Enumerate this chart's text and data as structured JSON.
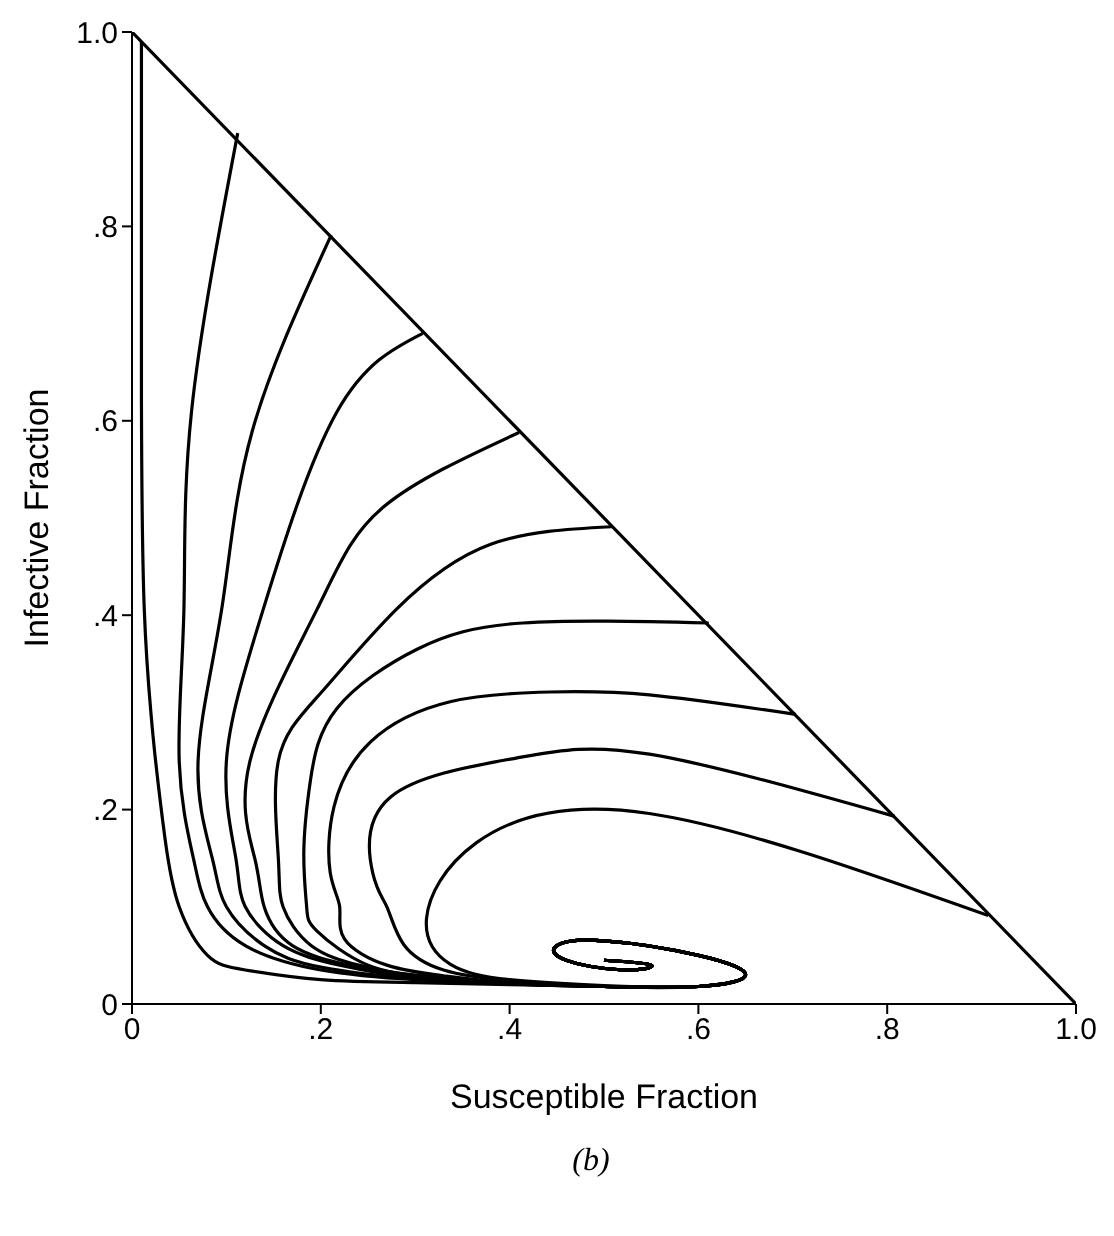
{
  "chart_data": {
    "type": "line",
    "xlabel": "Susceptible Fraction",
    "ylabel": "Infective Fraction",
    "annotations": [
      "(b)"
    ],
    "xlim": [
      0,
      1
    ],
    "ylim": [
      0,
      1
    ],
    "xticks": [
      {
        "value": 0,
        "label": "0"
      },
      {
        "value": 0.2,
        "label": ".2"
      },
      {
        "value": 0.4,
        "label": ".4"
      },
      {
        "value": 0.6,
        "label": ".6"
      },
      {
        "value": 0.8,
        "label": ".8"
      },
      {
        "value": 1,
        "label": "1.0"
      }
    ],
    "yticks": [
      {
        "value": 0,
        "label": "0"
      },
      {
        "value": 0.2,
        "label": ".2"
      },
      {
        "value": 0.4,
        "label": ".4"
      },
      {
        "value": 0.6,
        "label": ".6"
      },
      {
        "value": 0.8,
        "label": ".8"
      },
      {
        "value": 1,
        "label": "1.0"
      }
    ],
    "grid": false,
    "marker": "none",
    "line_style": "solid",
    "series": [
      {
        "color": "#000000",
        "x": [
          0,
          1
        ],
        "values": [
          1,
          0
        ]
      },
      {
        "color": "#000000",
        "x": [
          0.01,
          0.01,
          0.013,
          0.02,
          0.025,
          0.035,
          0.05,
          0.08,
          0.12,
          0.2,
          0.3,
          0.4,
          0.5,
          0.6,
          0.65,
          0.6,
          0.5,
          0.45,
          0.46,
          0.52,
          0.55,
          0.5
        ],
        "values": [
          0.99,
          0.62,
          0.406,
          0.3,
          0.25,
          0.17,
          0.1,
          0.05,
          0.035,
          0.025,
          0.022,
          0.02,
          0.018,
          0.018,
          0.03,
          0.05,
          0.065,
          0.06,
          0.045,
          0.035,
          0.04,
          0.045
        ]
      },
      {
        "color": "#000000",
        "x": [
          0.112,
          0.063,
          0.055,
          0.05,
          0.065,
          0.08,
          0.12,
          0.2,
          0.3,
          0.4,
          0.5,
          0.6,
          0.65,
          0.6,
          0.5,
          0.45,
          0.46,
          0.52,
          0.55,
          0.5
        ],
        "values": [
          0.896,
          0.609,
          0.406,
          0.25,
          0.15,
          0.1,
          0.06,
          0.035,
          0.025,
          0.021,
          0.018,
          0.018,
          0.03,
          0.05,
          0.065,
          0.06,
          0.045,
          0.035,
          0.04,
          0.045
        ]
      },
      {
        "color": "#000000",
        "x": [
          0.211,
          0.127,
          0.095,
          0.07,
          0.085,
          0.1,
          0.14,
          0.2,
          0.3,
          0.4,
          0.5,
          0.6,
          0.65,
          0.6,
          0.5,
          0.45,
          0.46,
          0.52,
          0.55,
          0.5
        ],
        "values": [
          0.791,
          0.588,
          0.406,
          0.25,
          0.15,
          0.1,
          0.06,
          0.038,
          0.026,
          0.021,
          0.018,
          0.018,
          0.03,
          0.05,
          0.065,
          0.06,
          0.045,
          0.035,
          0.04,
          0.045
        ]
      },
      {
        "color": "#000000",
        "x": [
          0.308,
          0.217,
          0.139,
          0.1,
          0.11,
          0.12,
          0.16,
          0.22,
          0.3,
          0.4,
          0.5,
          0.6,
          0.65,
          0.6,
          0.5,
          0.45,
          0.46,
          0.52,
          0.55,
          0.5
        ],
        "values": [
          0.69,
          0.609,
          0.406,
          0.25,
          0.15,
          0.1,
          0.06,
          0.04,
          0.027,
          0.021,
          0.018,
          0.018,
          0.03,
          0.05,
          0.065,
          0.06,
          0.045,
          0.035,
          0.04,
          0.045
        ]
      },
      {
        "color": "#000000",
        "x": [
          0.41,
          0.266,
          0.196,
          0.125,
          0.13,
          0.14,
          0.17,
          0.23,
          0.3,
          0.4,
          0.5,
          0.6,
          0.65,
          0.6,
          0.5,
          0.45,
          0.46,
          0.52,
          0.55,
          0.5
        ],
        "values": [
          0.588,
          0.511,
          0.406,
          0.25,
          0.15,
          0.1,
          0.06,
          0.04,
          0.028,
          0.021,
          0.018,
          0.018,
          0.03,
          0.05,
          0.065,
          0.06,
          0.045,
          0.035,
          0.04,
          0.045
        ]
      },
      {
        "color": "#000000",
        "x": [
          0.508,
          0.38,
          0.28,
          0.2,
          0.155,
          0.155,
          0.16,
          0.19,
          0.24,
          0.3,
          0.4,
          0.5,
          0.6,
          0.65,
          0.6,
          0.5,
          0.45,
          0.46,
          0.52,
          0.55,
          0.5
        ],
        "values": [
          0.491,
          0.473,
          0.406,
          0.32,
          0.25,
          0.15,
          0.1,
          0.06,
          0.04,
          0.029,
          0.021,
          0.018,
          0.018,
          0.03,
          0.05,
          0.065,
          0.06,
          0.045,
          0.035,
          0.04,
          0.045
        ]
      },
      {
        "color": "#000000",
        "x": [
          0.611,
          0.414,
          0.302,
          0.217,
          0.189,
          0.182,
          0.185,
          0.196,
          0.25,
          0.32,
          0.4,
          0.5,
          0.6,
          0.65,
          0.6,
          0.5,
          0.45,
          0.46,
          0.52,
          0.55,
          0.5
        ],
        "values": [
          0.392,
          0.392,
          0.365,
          0.304,
          0.23,
          0.156,
          0.1,
          0.075,
          0.04,
          0.028,
          0.021,
          0.018,
          0.018,
          0.03,
          0.05,
          0.065,
          0.06,
          0.045,
          0.035,
          0.04,
          0.045
        ]
      },
      {
        "color": "#000000",
        "x": [
          0.703,
          0.548,
          0.443,
          0.337,
          0.253,
          0.214,
          0.21,
          0.22,
          0.225,
          0.27,
          0.33,
          0.4,
          0.5,
          0.6,
          0.65,
          0.6,
          0.5,
          0.45,
          0.46,
          0.52,
          0.55,
          0.5
        ],
        "values": [
          0.298,
          0.318,
          0.321,
          0.311,
          0.27,
          0.203,
          0.135,
          0.1,
          0.067,
          0.04,
          0.029,
          0.022,
          0.018,
          0.018,
          0.03,
          0.05,
          0.065,
          0.06,
          0.045,
          0.035,
          0.04,
          0.045
        ]
      },
      {
        "color": "#000000",
        "x": [
          0.808,
          0.548,
          0.407,
          0.274,
          0.255,
          0.27,
          0.288,
          0.33,
          0.4,
          0.5,
          0.6,
          0.65,
          0.6,
          0.5,
          0.45,
          0.46,
          0.52,
          0.55,
          0.5
        ],
        "values": [
          0.193,
          0.257,
          0.253,
          0.213,
          0.135,
          0.1,
          0.061,
          0.035,
          0.024,
          0.018,
          0.018,
          0.03,
          0.05,
          0.065,
          0.06,
          0.045,
          0.035,
          0.04,
          0.045
        ]
      },
      {
        "color": "#000000",
        "x": [
          0.907,
          0.548,
          0.365,
          0.312,
          0.337,
          0.4,
          0.5,
          0.6,
          0.65,
          0.6,
          0.5,
          0.45,
          0.46,
          0.52,
          0.55,
          0.5
        ],
        "values": [
          0.091,
          0.196,
          0.166,
          0.088,
          0.041,
          0.025,
          0.019,
          0.018,
          0.03,
          0.05,
          0.065,
          0.06,
          0.045,
          0.035,
          0.04,
          0.045
        ]
      }
    ]
  }
}
